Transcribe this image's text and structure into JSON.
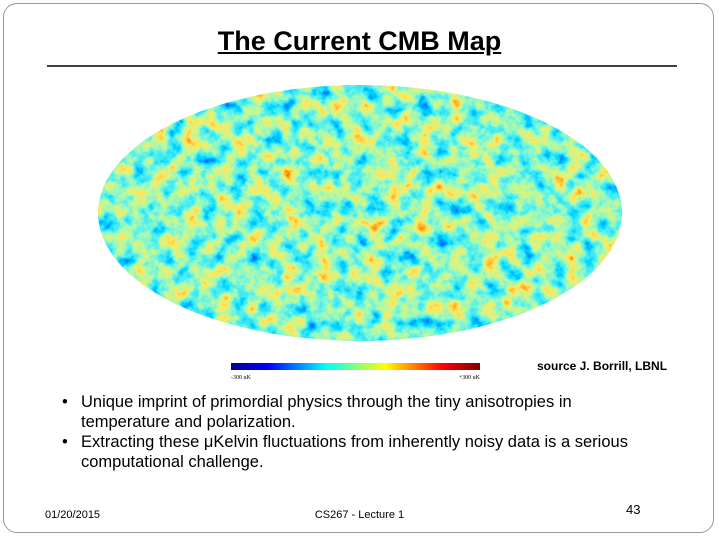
{
  "title": "The Current CMB Map",
  "map": {
    "scale_min_label": "-300 uK",
    "scale_max_label": "+300 uK",
    "source": "source J. Borrill, LBNL"
  },
  "bullets": [
    "Unique imprint of primordial physics through the tiny anisotropies in temperature and polarization.",
    "Extracting these μKelvin fluctuations from inherently noisy data is a serious computational challenge."
  ],
  "footer": {
    "date": "01/20/2015",
    "course": "CS267 - Lecture 1",
    "page": "43"
  }
}
